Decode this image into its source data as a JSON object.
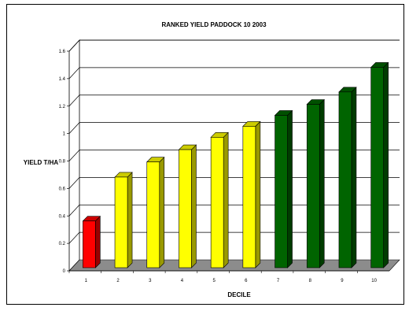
{
  "chart_data": {
    "type": "bar",
    "title": "RANKED YIELD   PADDOCK 10 2003",
    "xlabel": "DECILE",
    "ylabel": "YIELD T/HA",
    "categories": [
      "1",
      "2",
      "3",
      "4",
      "5",
      "6",
      "7",
      "8",
      "9",
      "10"
    ],
    "values": [
      0.34,
      0.66,
      0.77,
      0.86,
      0.95,
      1.03,
      1.11,
      1.19,
      1.28,
      1.46
    ],
    "bar_colors": [
      "#ff0000",
      "#ffff00",
      "#ffff00",
      "#ffff00",
      "#ffff00",
      "#ffff00",
      "#006400",
      "#006400",
      "#006400",
      "#006400"
    ],
    "yticks": [
      "0",
      "0.2",
      "0.4",
      "0.6",
      "0.8",
      "1",
      "1.2",
      "1.4",
      "1.6"
    ],
    "ylim": [
      0,
      1.6
    ],
    "grid": true
  }
}
